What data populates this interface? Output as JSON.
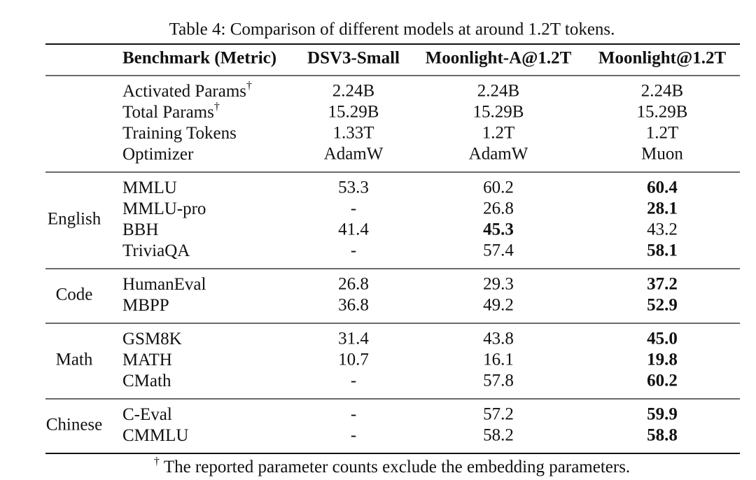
{
  "title": "Table 4: Comparison of different models at around 1.2T tokens.",
  "table": {
    "header": [
      "Benchmark (Metric)",
      "DSV3-Small",
      "Moonlight-A@1.2T",
      "Moonlight@1.2T"
    ],
    "sections": [
      {
        "rows": [
          {
            "label": "Activated Params",
            "mark": "†",
            "cells": [
              "2.24B",
              "2.24B",
              "2.24B"
            ]
          },
          {
            "label": "Total Params",
            "mark": "†",
            "cells": [
              "15.29B",
              "15.29B",
              "15.29B"
            ]
          },
          {
            "label": "Training Tokens",
            "cells": [
              "1.33T",
              "1.2T",
              "1.2T"
            ]
          },
          {
            "label": "Optimizer",
            "cells": [
              "AdamW",
              "AdamW",
              "Muon"
            ]
          }
        ]
      },
      {
        "group": "English",
        "rows": [
          {
            "label": "MMLU",
            "cells": [
              "53.3",
              "60.2",
              "60.4"
            ],
            "bold": 2
          },
          {
            "label": "MMLU-pro",
            "cells": [
              "-",
              "26.8",
              "28.1"
            ],
            "bold": 2
          },
          {
            "label": "BBH",
            "cells": [
              "41.4",
              "45.3",
              "43.2"
            ],
            "bold": 1
          },
          {
            "label": "TriviaQA",
            "cells": [
              "-",
              "57.4",
              "58.1"
            ],
            "bold": 2
          }
        ]
      },
      {
        "group": "Code",
        "rows": [
          {
            "label": "HumanEval",
            "cells": [
              "26.8",
              "29.3",
              "37.2"
            ],
            "bold": 2
          },
          {
            "label": "MBPP",
            "cells": [
              "36.8",
              "49.2",
              "52.9"
            ],
            "bold": 2
          }
        ]
      },
      {
        "group": "Math",
        "rows": [
          {
            "label": "GSM8K",
            "cells": [
              "31.4",
              "43.8",
              "45.0"
            ],
            "bold": 2
          },
          {
            "label": "MATH",
            "cells": [
              "10.7",
              "16.1",
              "19.8"
            ],
            "bold": 2
          },
          {
            "label": "CMath",
            "cells": [
              "-",
              "57.8",
              "60.2"
            ],
            "bold": 2
          }
        ]
      },
      {
        "group": "Chinese",
        "rows": [
          {
            "label": "C-Eval",
            "cells": [
              "-",
              "57.2",
              "59.9"
            ],
            "bold": 2
          },
          {
            "label": "CMMLU",
            "cells": [
              "-",
              "58.2",
              "58.8"
            ],
            "bold": 2
          }
        ]
      }
    ]
  },
  "footnote": {
    "mark": "†",
    "text": "The reported parameter counts exclude the embedding parameters."
  }
}
